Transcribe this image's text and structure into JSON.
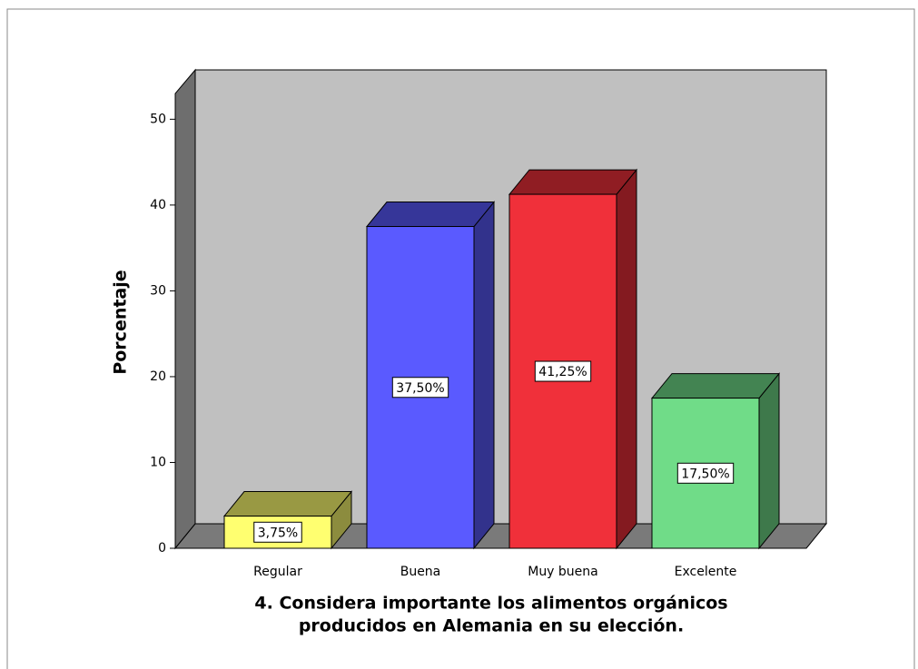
{
  "chart_data": {
    "type": "bar3d",
    "xlabel": [
      "4. Considera importante los alimentos orgánicos",
      "producidos en Alemania en su elección."
    ],
    "ylabel": "Porcentaje",
    "categories": [
      "Regular",
      "Buena",
      "Muy buena",
      "Excelente"
    ],
    "values": [
      3.75,
      37.5,
      41.25,
      17.5
    ],
    "value_labels": [
      "3,75%",
      "37,50%",
      "41,25%",
      "17,50%"
    ],
    "colors": [
      "#ffff70",
      "#5a5aff",
      "#f0303a",
      "#70dc88"
    ],
    "ylim": [
      0,
      53
    ],
    "yticks": [
      0,
      10,
      20,
      30,
      40,
      50
    ]
  }
}
